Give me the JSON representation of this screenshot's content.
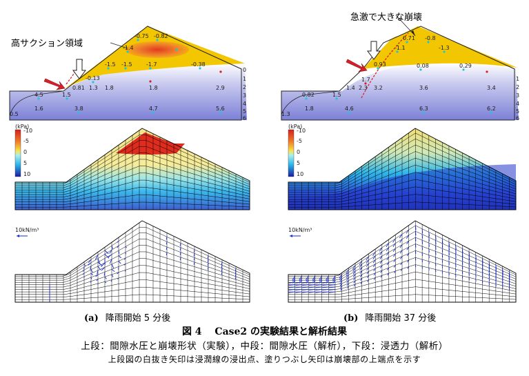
{
  "panel_a": {
    "annotation": "高サクション領域",
    "top_values": [
      "-0.75",
      "-0.82",
      "-1.4",
      "-1.5",
      "-1.5",
      "-1.7",
      "-0.38",
      "-0.13",
      "0.81",
      "1.3",
      "1.8",
      "1.8",
      "2.9",
      "1.5",
      "4.5",
      "1.6",
      "3.8",
      "4.7",
      "5.6",
      "0.5"
    ],
    "side_numbers": [
      "0",
      "1",
      "2",
      "3",
      "4",
      "5",
      "6"
    ],
    "legend_unit": "(kPa)",
    "legend_ticks": [
      "-10",
      "-5",
      "0",
      "5",
      "10"
    ],
    "flux_scale": "10kN/m³",
    "label_letter": "(a)",
    "label_text": "降雨開始 5 分後"
  },
  "panel_b": {
    "annotation": "急激で大きな崩壊",
    "top_values": [
      "0.71",
      "-0.8",
      "-1.1",
      "-1.3",
      "0.93",
      "0.08",
      "0.29",
      "1.7",
      "0.82",
      "1.5",
      "1.4",
      "2.3",
      "3.2",
      "3.6",
      "3.4",
      "1.8",
      "4.6",
      "6.3",
      "6.2",
      "1.3"
    ],
    "side_numbers": [
      "1",
      "2",
      "3",
      "4",
      "5",
      "6"
    ],
    "legend_unit": "(kPa)",
    "legend_ticks": [
      "-10",
      "-5",
      "0",
      "5",
      "10"
    ],
    "flux_scale": "10kN/m³",
    "label_letter": "(b)",
    "label_text": "降雨開始 37 分後"
  },
  "caption": {
    "figure": "図 4　 Case2 の実験結果と解析結果",
    "line2": "上段：間隙水圧と崩壊形状（実験），中段：間隙水圧（解析），下段：浸透力（解析）",
    "line3": "上段図の白抜き矢印は浸潤線の浸出点、塗りつぶし矢印は崩壊部の上端点を示す"
  },
  "colors": {
    "suction": "#f2c400",
    "hot": "#e23a1f",
    "wet": "#3b3fc8",
    "arrow_red": "#d8202a",
    "grid": "#000000"
  }
}
